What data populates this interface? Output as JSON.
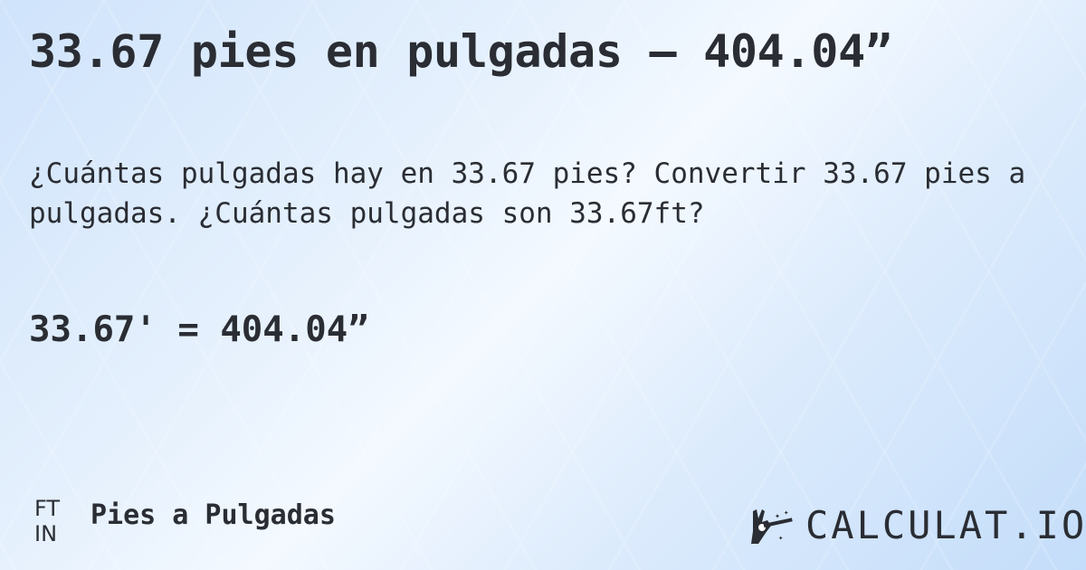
{
  "title": "33.67 pies en pulgadas — 404.04”",
  "description": "¿Cuántas pulgadas hay en 33.67 pies? Convertir 33.67 pies a pulgadas. ¿Cuántas pulgadas son 33.67ft?",
  "result": "33.67' = 404.04”",
  "footer": {
    "icon_top": "FT",
    "icon_bottom": "IN",
    "label": "Pies a Pulgadas"
  },
  "logo": {
    "text": "CALCULAT.IO",
    "icon": "magic-hand-icon"
  }
}
